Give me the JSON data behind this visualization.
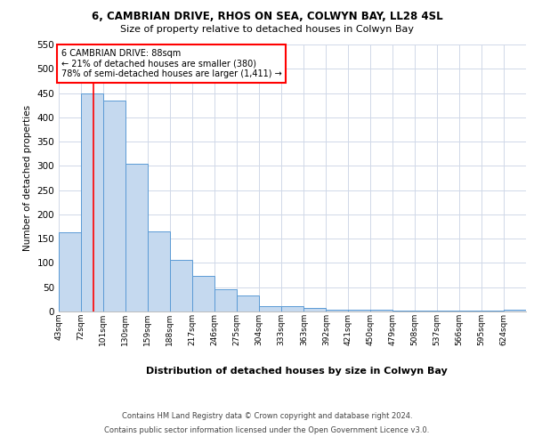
{
  "title1": "6, CAMBRIAN DRIVE, RHOS ON SEA, COLWYN BAY, LL28 4SL",
  "title2": "Size of property relative to detached houses in Colwyn Bay",
  "xlabel": "Distribution of detached houses by size in Colwyn Bay",
  "ylabel": "Number of detached properties",
  "footer1": "Contains HM Land Registry data © Crown copyright and database right 2024.",
  "footer2": "Contains public sector information licensed under the Open Government Licence v3.0.",
  "annotation_title": "6 CAMBRIAN DRIVE: 88sqm",
  "annotation_line2": "← 21% of detached houses are smaller (380)",
  "annotation_line3": "78% of semi-detached houses are larger (1,411) →",
  "bar_color": "#c5d9ef",
  "bar_edge_color": "#5b9bd5",
  "red_line_x": 88,
  "categories": [
    "43sqm",
    "72sqm",
    "101sqm",
    "130sqm",
    "159sqm",
    "188sqm",
    "217sqm",
    "246sqm",
    "275sqm",
    "304sqm",
    "333sqm",
    "363sqm",
    "392sqm",
    "421sqm",
    "450sqm",
    "479sqm",
    "508sqm",
    "537sqm",
    "566sqm",
    "595sqm",
    "624sqm"
  ],
  "bin_edges": [
    43,
    72,
    101,
    130,
    159,
    188,
    217,
    246,
    275,
    304,
    333,
    363,
    392,
    421,
    450,
    479,
    508,
    537,
    566,
    595,
    624,
    653
  ],
  "values": [
    163,
    450,
    435,
    305,
    165,
    106,
    73,
    45,
    33,
    11,
    11,
    8,
    4,
    4,
    4,
    2,
    1,
    1,
    1,
    1,
    4
  ],
  "ylim": [
    0,
    550
  ],
  "yticks": [
    0,
    50,
    100,
    150,
    200,
    250,
    300,
    350,
    400,
    450,
    500,
    550
  ],
  "background_color": "#ffffff",
  "grid_color": "#d0d8e8"
}
